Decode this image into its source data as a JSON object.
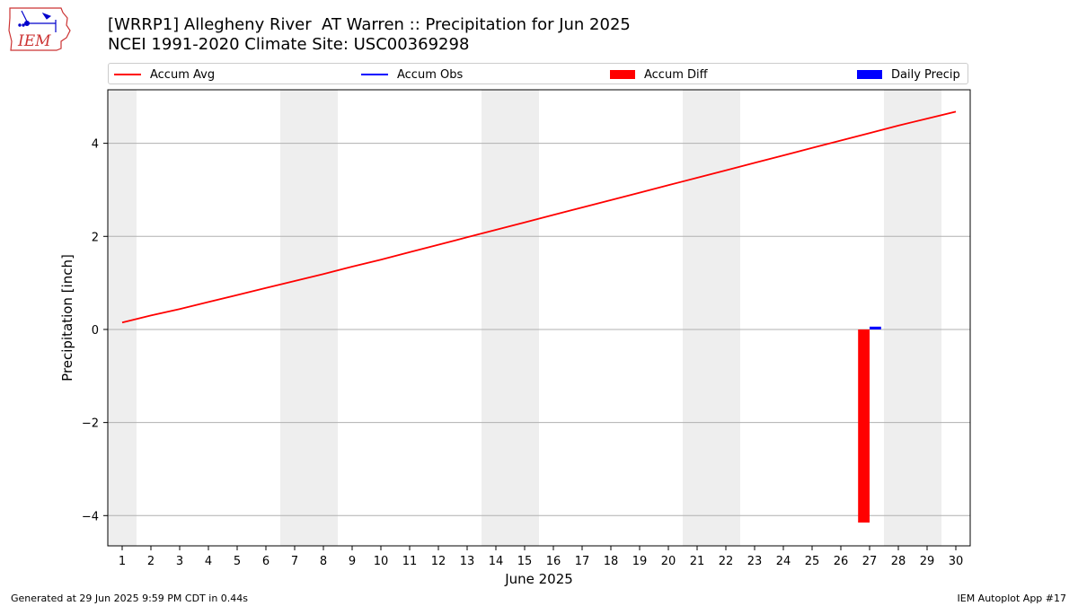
{
  "logo": {
    "text": "IEM",
    "icon": "iem-iowa-logo-icon"
  },
  "title_line1": "[WRRP1] Allegheny River  AT Warren :: Precipitation for Jun 2025",
  "title_line2": "NCEI 1991-2020 Climate Site: USC00369298",
  "legend": {
    "placement": "top",
    "items": [
      {
        "label": "Accum Avg",
        "kind": "line",
        "color": "#ff0000"
      },
      {
        "label": "Accum Obs",
        "kind": "line",
        "color": "#0000ff"
      },
      {
        "label": "Accum Diff",
        "kind": "bar",
        "color": "#ff0000"
      },
      {
        "label": "Daily Precip",
        "kind": "bar",
        "color": "#0000ff"
      }
    ]
  },
  "footer": {
    "left": "Generated at 29 Jun 2025 9:59 PM CDT in 0.44s",
    "right": "IEM Autoplot App #17"
  },
  "chart_data": {
    "type": "line",
    "xlabel": "June 2025",
    "ylabel": "Precipitation [inch]",
    "xlim": [
      0.5,
      30.5
    ],
    "ylim": [
      -4.65,
      5.15
    ],
    "grid": true,
    "x_ticks": [
      1,
      2,
      3,
      4,
      5,
      6,
      7,
      8,
      9,
      10,
      11,
      12,
      13,
      14,
      15,
      16,
      17,
      18,
      19,
      20,
      21,
      22,
      23,
      24,
      25,
      26,
      27,
      28,
      29,
      30
    ],
    "y_ticks": [
      -4,
      -2,
      0,
      2,
      4
    ],
    "y_tick_labels": [
      "−4",
      "−2",
      "0",
      "2",
      "4"
    ],
    "weekend_shading": [
      [
        0.5,
        1.5
      ],
      [
        6.5,
        8.5
      ],
      [
        13.5,
        15.5
      ],
      [
        20.5,
        22.5
      ],
      [
        27.5,
        29.5
      ]
    ],
    "shading_color": "#eeeeee",
    "series": [
      {
        "name": "Accum Avg",
        "kind": "line",
        "color": "#ff0000",
        "x": [
          1,
          2,
          3,
          4,
          5,
          6,
          7,
          8,
          9,
          10,
          11,
          12,
          13,
          14,
          15,
          16,
          17,
          18,
          19,
          20,
          21,
          22,
          23,
          24,
          25,
          26,
          27,
          28,
          29,
          30
        ],
        "values": [
          0.15,
          0.3,
          0.44,
          0.59,
          0.74,
          0.89,
          1.04,
          1.19,
          1.35,
          1.5,
          1.66,
          1.82,
          1.98,
          2.14,
          2.3,
          2.46,
          2.62,
          2.78,
          2.94,
          3.1,
          3.26,
          3.42,
          3.58,
          3.74,
          3.9,
          4.06,
          4.22,
          4.38,
          4.53,
          4.68
        ]
      },
      {
        "name": "Accum Obs",
        "kind": "line",
        "color": "#0000ff",
        "x": [],
        "values": []
      },
      {
        "name": "Accum Diff",
        "kind": "bar",
        "color": "#ff0000",
        "x": [
          26.8
        ],
        "values": [
          -4.15
        ],
        "width": 0.4
      },
      {
        "name": "Daily Precip",
        "kind": "bar",
        "color": "#0000ff",
        "x": [
          27.2
        ],
        "values": [
          0.06
        ],
        "width": 0.4
      }
    ]
  }
}
